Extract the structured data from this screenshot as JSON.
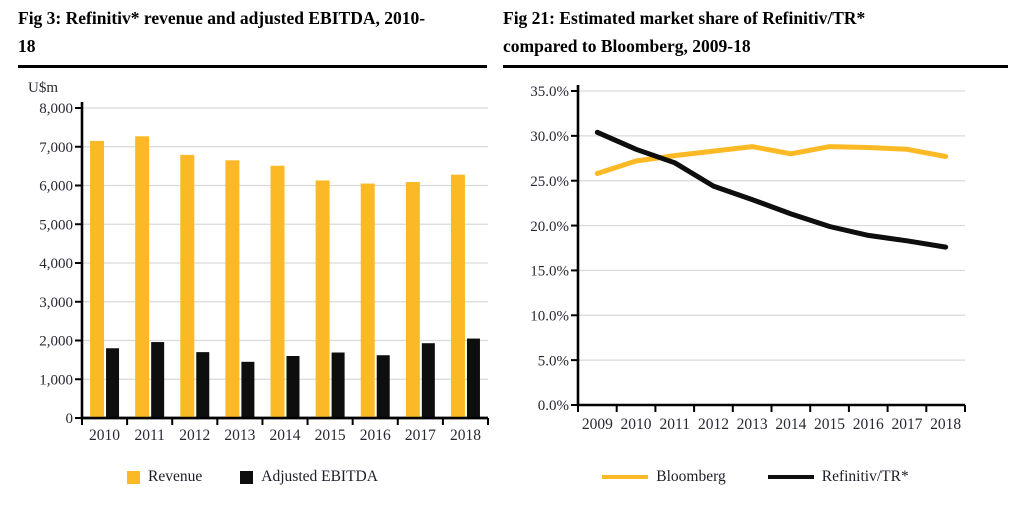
{
  "panels": {
    "left": {
      "title_line1": "Fig 3: Refinitiv* revenue and adjusted EBITDA, 2010-",
      "title_line2": "18",
      "unit_label": "U$m"
    },
    "right": {
      "title_line1": "Fig 21: Estimated market share of Refinitiv/TR*",
      "title_line2": "compared to Bloomberg, 2009-18"
    }
  },
  "colors": {
    "accent_yellow": "#FBBA25",
    "series_black": "#0E0E0E",
    "gridline": "#D9D9D9",
    "axis": "#000000",
    "tick_text": "#282834",
    "title_text": "#000000",
    "background": "#FFFFFF"
  },
  "chart_data": [
    {
      "type": "bar",
      "title": "Fig 3: Refinitiv* revenue and adjusted EBITDA, 2010-18",
      "xlabel": "",
      "ylabel": "U$m",
      "categories": [
        "2010",
        "2011",
        "2012",
        "2013",
        "2014",
        "2015",
        "2016",
        "2017",
        "2018"
      ],
      "series": [
        {
          "name": "Revenue",
          "color": "#FBBA25",
          "values": [
            7150,
            7270,
            6790,
            6650,
            6510,
            6130,
            6050,
            6090,
            6280
          ]
        },
        {
          "name": "Adjusted EBITDA",
          "color": "#0E0E0E",
          "values": [
            1800,
            1960,
            1700,
            1450,
            1600,
            1690,
            1620,
            1930,
            2050
          ]
        }
      ],
      "ylim": [
        0,
        8000
      ],
      "ytick_step": 1000,
      "ytick_labels": [
        "0",
        "1,000",
        "2,000",
        "3,000",
        "4,000",
        "5,000",
        "6,000",
        "7,000",
        "8,000"
      ],
      "grid": true,
      "legend_position": "bottom"
    },
    {
      "type": "line",
      "title": "Fig 21: Estimated market share of Refinitiv/TR* compared to Bloomberg, 2009-18",
      "xlabel": "",
      "ylabel": "",
      "categories": [
        "2009",
        "2010",
        "2011",
        "2012",
        "2013",
        "2014",
        "2015",
        "2016",
        "2017",
        "2018"
      ],
      "series": [
        {
          "name": "Bloomberg",
          "color": "#FBBA25",
          "values": [
            25.8,
            27.2,
            27.8,
            28.3,
            28.8,
            28.0,
            28.8,
            28.7,
            28.5,
            27.7
          ]
        },
        {
          "name": "Refinitiv/TR*",
          "color": "#0E0E0E",
          "values": [
            30.4,
            28.5,
            27.0,
            24.4,
            22.9,
            21.3,
            19.9,
            18.9,
            18.3,
            17.6
          ]
        }
      ],
      "ylim": [
        0,
        35
      ],
      "ytick_step": 5,
      "ytick_labels": [
        "0.0%",
        "5.0%",
        "10.0%",
        "15.0%",
        "20.0%",
        "25.0%",
        "30.0%",
        "35.0%"
      ],
      "grid": true,
      "legend_position": "bottom"
    }
  ]
}
